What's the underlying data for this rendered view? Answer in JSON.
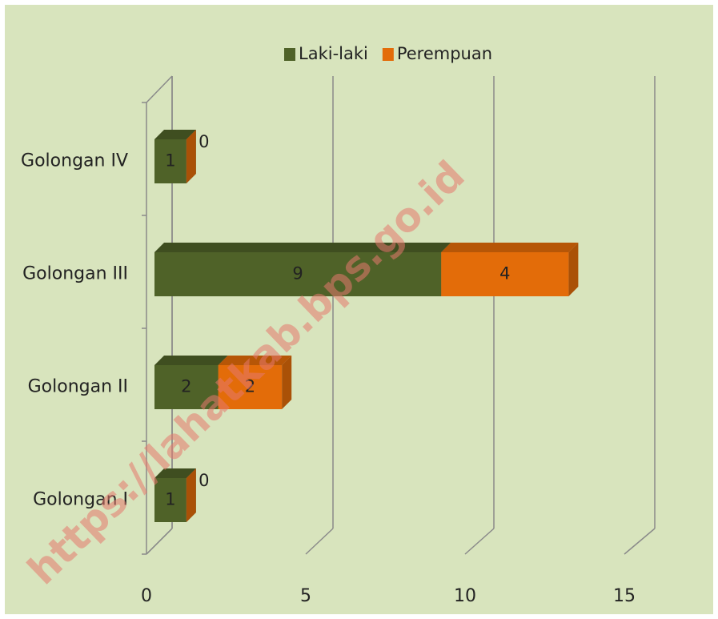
{
  "chart_data": {
    "type": "bar3d-stacked-horizontal",
    "categories": [
      "Golongan IV",
      "Golongan III",
      "Golongan II",
      "Golongan I"
    ],
    "series": [
      {
        "name": "Laki-laki",
        "color": "#4f6228",
        "values": [
          1,
          9,
          2,
          1
        ]
      },
      {
        "name": "Perempuan",
        "color": "#e36c09",
        "values": [
          0,
          4,
          2,
          0
        ]
      }
    ],
    "xlim": [
      0,
      15
    ],
    "xticks": [
      0,
      5,
      10,
      15
    ],
    "grid": true,
    "legend": "top",
    "watermark": "https://lahatkab.bps.go.id"
  }
}
